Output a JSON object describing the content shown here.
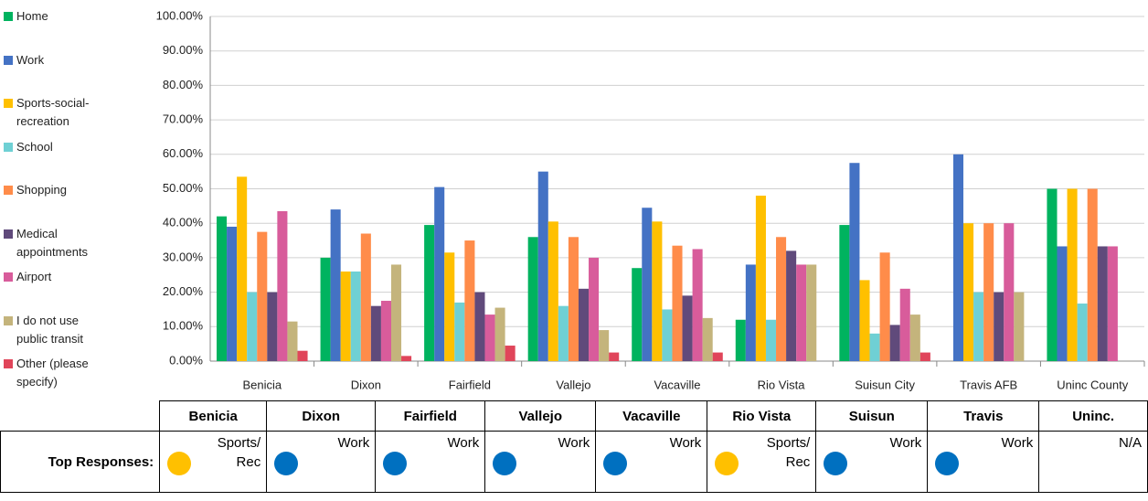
{
  "chart_data": {
    "type": "bar",
    "categories": [
      "Benicia",
      "Dixon",
      "Fairfield",
      "Vallejo",
      "Vacaville",
      "Rio Vista",
      "Suisun City",
      "Travis AFB",
      "Uninc County"
    ],
    "series": [
      {
        "name": "Home",
        "color": "#00b35f",
        "values": [
          42,
          30,
          39.5,
          36,
          27,
          12,
          39.5,
          0,
          50
        ]
      },
      {
        "name": "Work",
        "color": "#4472c4",
        "values": [
          39,
          44,
          50.5,
          55,
          44.5,
          28,
          57.5,
          60,
          33.3
        ]
      },
      {
        "name": "Sports-social-recreation",
        "color": "#ffc000",
        "values": [
          53.5,
          26,
          31.5,
          40.5,
          40.5,
          48,
          23.5,
          40,
          50
        ]
      },
      {
        "name": "School",
        "color": "#6fd0d4",
        "values": [
          20,
          26,
          17,
          16,
          15,
          12,
          8,
          20,
          16.7
        ]
      },
      {
        "name": "Shopping",
        "color": "#ff8c4a",
        "values": [
          37.5,
          37,
          35,
          36,
          33.5,
          36,
          31.5,
          40,
          50
        ]
      },
      {
        "name": "Medical appointments",
        "color": "#604a7b",
        "values": [
          20,
          16,
          20,
          21,
          19,
          32,
          10.5,
          20,
          33.3
        ]
      },
      {
        "name": "Airport",
        "color": "#d85c9b",
        "values": [
          43.5,
          17.5,
          13.5,
          30,
          32.5,
          28,
          21,
          40,
          33.3
        ]
      },
      {
        "name": "I do not use public transit",
        "color": "#c4b47c",
        "values": [
          11.5,
          28,
          15.5,
          9,
          12.5,
          28,
          13.5,
          20,
          0
        ]
      },
      {
        "name": "Other (please specify)",
        "color": "#e0455a",
        "values": [
          3,
          1.5,
          4.5,
          2.5,
          2.5,
          0,
          2.5,
          0,
          0
        ]
      }
    ],
    "ylim": [
      0,
      100
    ],
    "yticks": [
      {
        "value": 0,
        "label": "0.00%"
      },
      {
        "value": 10,
        "label": "10.00%"
      },
      {
        "value": 20,
        "label": "20.00%"
      },
      {
        "value": 30,
        "label": "30.00%"
      },
      {
        "value": 40,
        "label": "40.00%"
      },
      {
        "value": 50,
        "label": "50.00%"
      },
      {
        "value": 60,
        "label": "60.00%"
      },
      {
        "value": 70,
        "label": "70.00%"
      },
      {
        "value": 80,
        "label": "80.00%"
      },
      {
        "value": 90,
        "label": "90.00%"
      },
      {
        "value": 100,
        "label": "100.00%"
      }
    ],
    "grid": true,
    "legend": "left"
  },
  "table": {
    "header": [
      "Benicia",
      "Dixon",
      "Fairfield",
      "Vallejo",
      "Vacaville",
      "Rio Vista",
      "Suisun",
      "Travis",
      "Uninc."
    ],
    "row_label": "Top Responses:",
    "cells": [
      {
        "text": "Sports/ Rec",
        "color": "#ffc000"
      },
      {
        "text": "Work",
        "color": "#0070c0"
      },
      {
        "text": "Work",
        "color": "#0070c0"
      },
      {
        "text": "Work",
        "color": "#0070c0"
      },
      {
        "text": "Work",
        "color": "#0070c0"
      },
      {
        "text": "Sports/ Rec",
        "color": "#ffc000"
      },
      {
        "text": "Work",
        "color": "#0070c0"
      },
      {
        "text": "Work",
        "color": "#0070c0"
      },
      {
        "text": "N/A"
      }
    ]
  }
}
